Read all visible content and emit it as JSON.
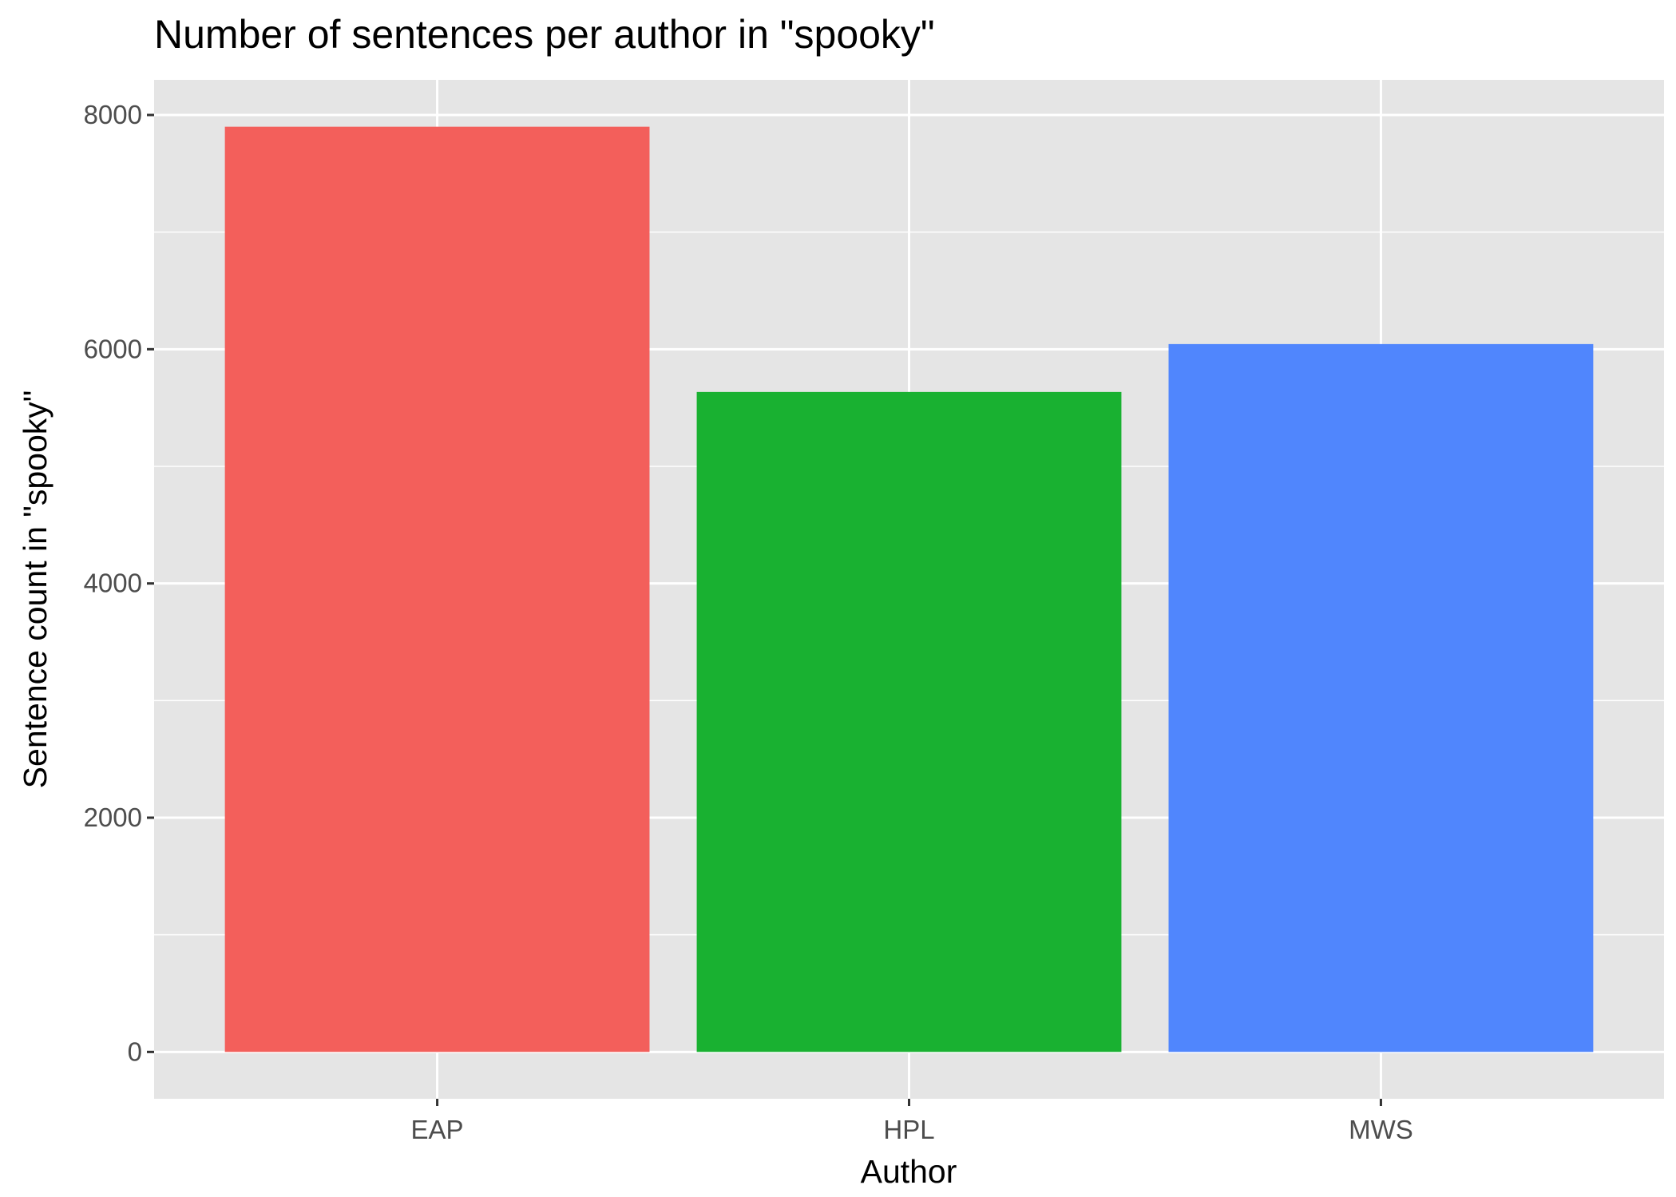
{
  "chart_data": {
    "type": "bar",
    "title": "Number of sentences per author in \"spooky\"",
    "xlabel": "Author",
    "ylabel": "Sentence count in \"spooky\"",
    "categories": [
      "EAP",
      "HPL",
      "MWS"
    ],
    "values": [
      7900,
      5635,
      6044
    ],
    "colors": [
      "#F35F5B",
      "#19B131",
      "#5086FD"
    ],
    "ylim": [
      -400,
      8300
    ],
    "yticks": [
      0,
      2000,
      4000,
      6000,
      8000
    ],
    "yticks_minor": [
      1000,
      3000,
      5000,
      7000
    ],
    "grid": true,
    "legend": "none",
    "panel_background": "#E5E5E5",
    "grid_color": "#FFFFFF"
  }
}
